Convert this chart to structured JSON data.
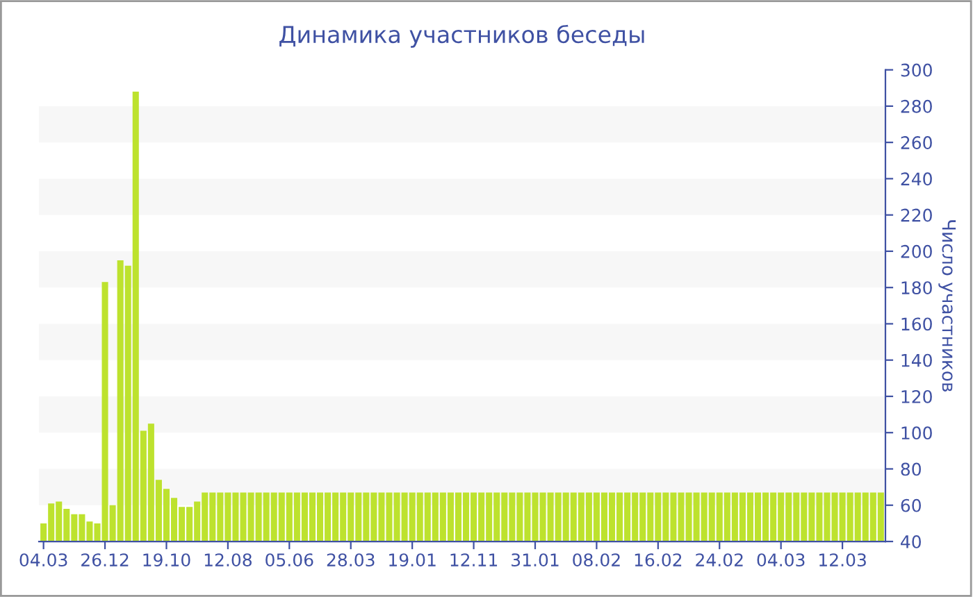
{
  "chart_data": {
    "type": "bar",
    "title": "Динамика участников беседы",
    "ylabel": "Число участников",
    "categories": [
      "04.03",
      null,
      null,
      null,
      null,
      null,
      null,
      null,
      "26.12",
      null,
      null,
      null,
      null,
      null,
      null,
      null,
      "19.10",
      null,
      null,
      null,
      null,
      null,
      null,
      null,
      "12.08",
      null,
      null,
      null,
      null,
      null,
      null,
      null,
      "05.06",
      null,
      null,
      null,
      null,
      null,
      null,
      null,
      "28.03",
      null,
      null,
      null,
      null,
      null,
      null,
      null,
      "19.01",
      null,
      null,
      null,
      null,
      null,
      null,
      null,
      "12.11",
      null,
      null,
      null,
      null,
      null,
      null,
      null,
      "31.01",
      null,
      null,
      null,
      null,
      null,
      null,
      null,
      "08.02",
      null,
      null,
      null,
      null,
      null,
      null,
      null,
      "16.02",
      null,
      null,
      null,
      null,
      null,
      null,
      null,
      "24.02",
      null,
      null,
      null,
      null,
      null,
      null,
      null,
      "04.03",
      null,
      null,
      null,
      null,
      null,
      null,
      null,
      "12.03",
      null,
      null,
      null,
      null,
      null
    ],
    "values": [
      50,
      61,
      62,
      58,
      55,
      55,
      51,
      50,
      183,
      60,
      195,
      192,
      288,
      101,
      105,
      74,
      69,
      64,
      59,
      59,
      62,
      67,
      67,
      67,
      67,
      67,
      67,
      67,
      67,
      67,
      67,
      67,
      67,
      67,
      67,
      67,
      67,
      67,
      67,
      67,
      67,
      67,
      67,
      67,
      67,
      67,
      67,
      67,
      67,
      67,
      67,
      67,
      67,
      67,
      67,
      67,
      67,
      67,
      67,
      67,
      67,
      67,
      67,
      67,
      67,
      67,
      67,
      67,
      67,
      67,
      67,
      67,
      67,
      67,
      67,
      67,
      67,
      67,
      67,
      67,
      67,
      67,
      67,
      67,
      67,
      67,
      67,
      67,
      67,
      67,
      67,
      67,
      67,
      67,
      67,
      67,
      67,
      67,
      67,
      67,
      67,
      67,
      67,
      67,
      67,
      67,
      67,
      67,
      67,
      67
    ],
    "color": "#bde22e",
    "ylim": [
      40,
      300
    ],
    "yticks": [
      40,
      60,
      80,
      100,
      120,
      140,
      160,
      180,
      200,
      220,
      240,
      260,
      280,
      300
    ],
    "bands": [
      {
        "axis": "y",
        "from": 60,
        "to": 80,
        "color": "#f7f7f7"
      },
      {
        "axis": "y",
        "from": 100,
        "to": 120,
        "color": "#f7f7f7"
      },
      {
        "axis": "y",
        "from": 140,
        "to": 160,
        "color": "#f7f7f7"
      },
      {
        "axis": "y",
        "from": 180,
        "to": 200,
        "color": "#f7f7f7"
      },
      {
        "axis": "y",
        "from": 220,
        "to": 240,
        "color": "#f7f7f7"
      },
      {
        "axis": "y",
        "from": 260,
        "to": 280,
        "color": "#f7f7f7"
      }
    ]
  }
}
